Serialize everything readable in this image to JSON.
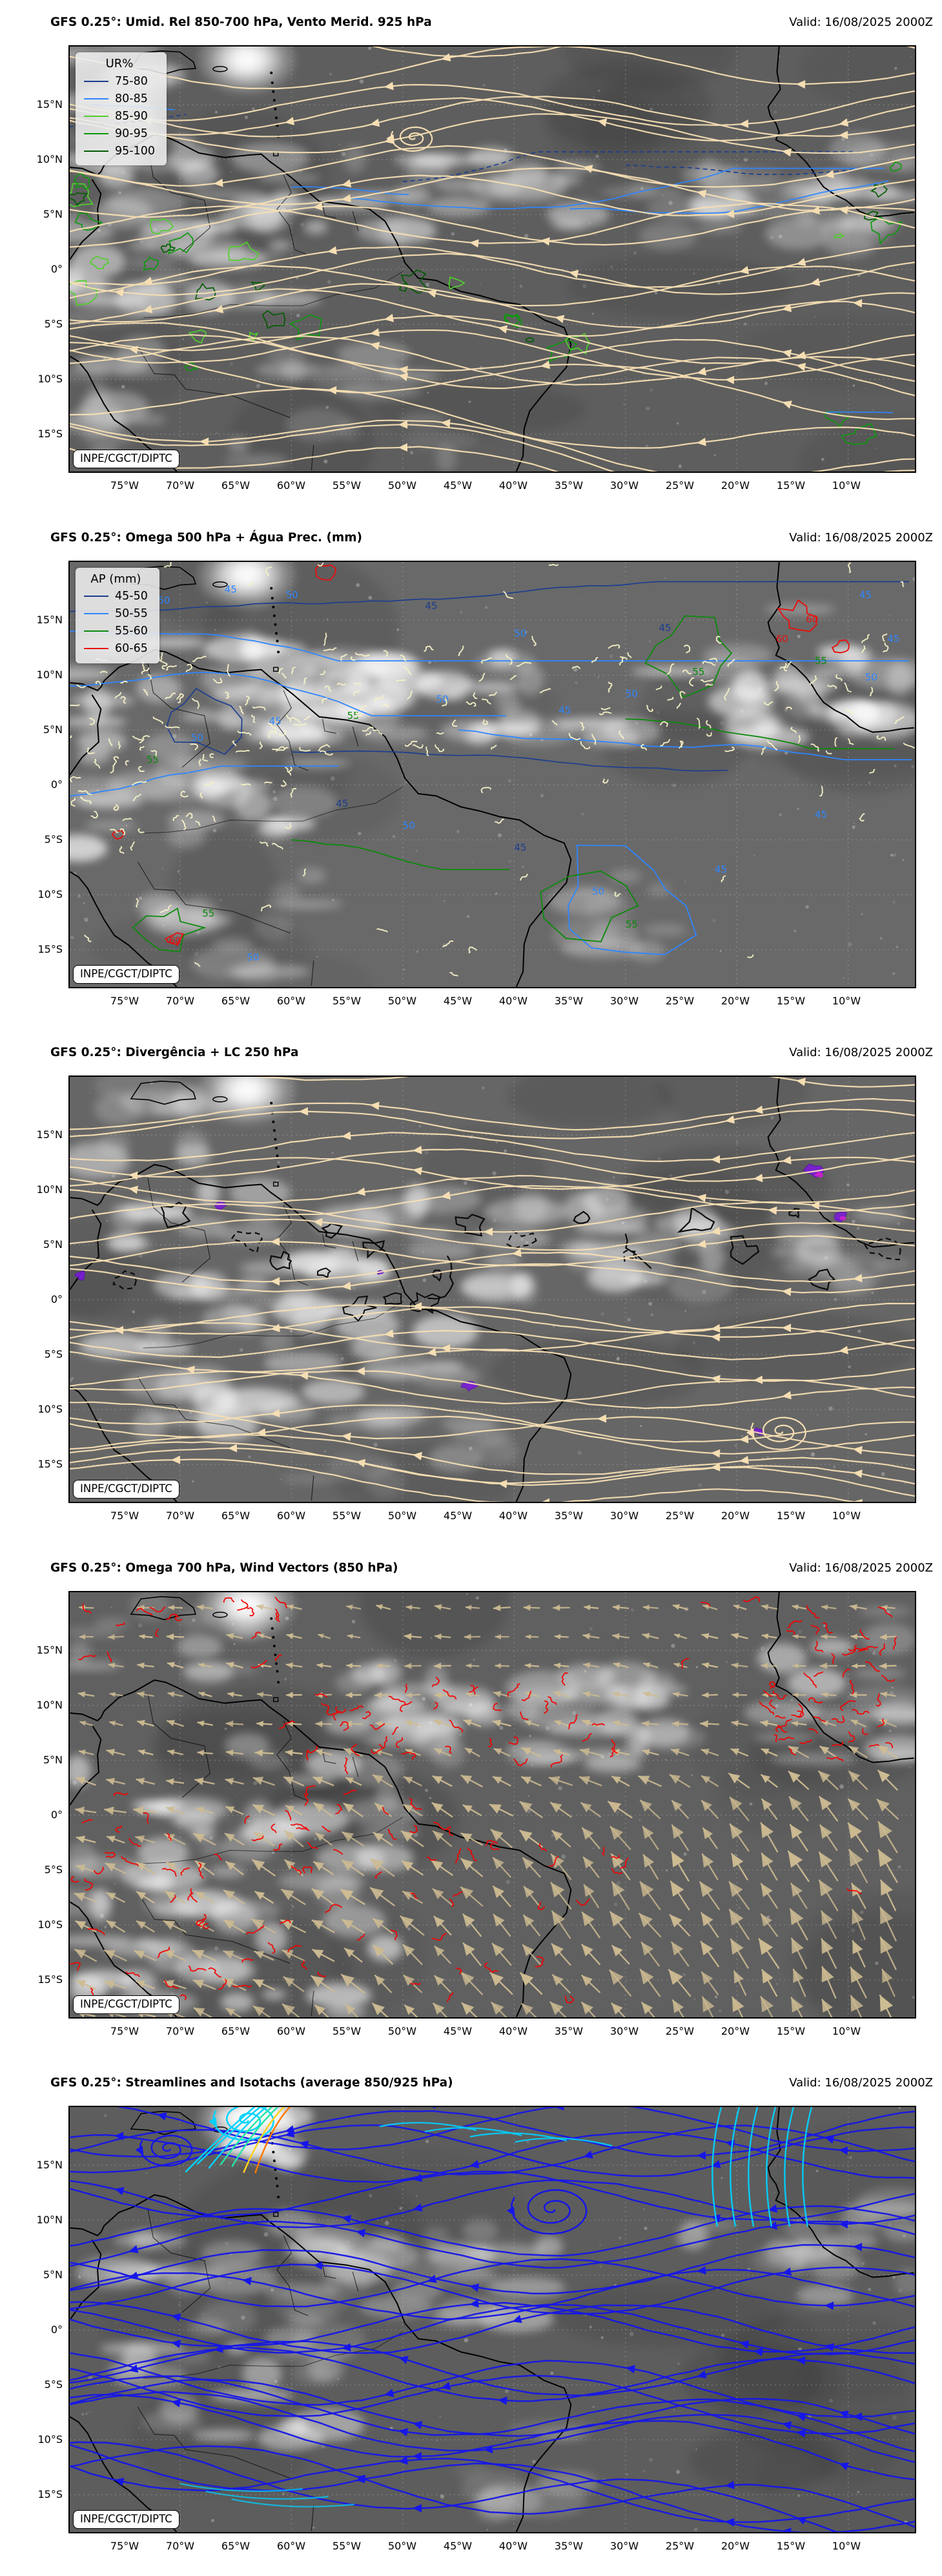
{
  "attribution": "INPE/CGCT/DIPTC",
  "axis": {
    "x_ticks": [
      "75°W",
      "70°W",
      "65°W",
      "60°W",
      "55°W",
      "50°W",
      "45°W",
      "40°W",
      "35°W",
      "30°W",
      "25°W",
      "20°W",
      "15°W",
      "10°W"
    ],
    "y_ticks": [
      "15°N",
      "10°N",
      "5°N",
      "0°",
      "5°S",
      "10°S",
      "15°S"
    ]
  },
  "panels": [
    {
      "title": "GFS 0.25°: Umid. Rel 850-700 hPa, Vento Merid. 925 hPa",
      "valid": "Valid: 16/08/2025 2000Z",
      "legend": {
        "title": "UR%",
        "items": [
          {
            "label": "75-80",
            "color": "#1c3d8f"
          },
          {
            "label": "80-85",
            "color": "#2e86ff"
          },
          {
            "label": "85-90",
            "color": "#4fd02c"
          },
          {
            "label": "90-95",
            "color": "#0c9a0c"
          },
          {
            "label": "95-100",
            "color": "#045c04"
          }
        ]
      }
    },
    {
      "title": "GFS 0.25°: Omega 500 hPa + Água Prec. (mm)",
      "valid": "Valid: 16/08/2025 2000Z",
      "legend": {
        "title": "AP (mm)",
        "items": [
          {
            "label": "45-50",
            "color": "#1c3d8f"
          },
          {
            "label": "50-55",
            "color": "#2e86ff"
          },
          {
            "label": "55-60",
            "color": "#0b8a0b"
          },
          {
            "label": "60-65",
            "color": "#e81010"
          }
        ]
      },
      "contour_labels": [
        "45",
        "50",
        "55",
        "60"
      ]
    },
    {
      "title": "GFS 0.25°: Divergência + LC 250 hPa",
      "valid": "Valid: 16/08/2025 2000Z",
      "legend": null
    },
    {
      "title": "GFS 0.25°: Omega 700 hPa, Wind Vectors (850 hPa)",
      "valid": "Valid: 16/08/2025 2000Z",
      "legend": null
    },
    {
      "title": "GFS 0.25°: Streamlines and Isotachs (average 850/925 hPa)",
      "valid": "Valid: 16/08/2025 2000Z",
      "legend": null
    }
  ],
  "chart_data": [
    {
      "type": "map",
      "title": "GFS 0.25°: Umid. Rel 850-700 hPa, Vento Merid. 925 hPa",
      "valid": "Valid: 16/08/2025 2000Z",
      "lon_ticks": [
        "75°W",
        "70°W",
        "65°W",
        "60°W",
        "55°W",
        "50°W",
        "45°W",
        "40°W",
        "35°W",
        "30°W",
        "25°W",
        "20°W",
        "15°W",
        "10°W"
      ],
      "lat_ticks": [
        "15°N",
        "10°N",
        "5°N",
        "0°",
        "5°S",
        "10°S",
        "15°S"
      ],
      "legend_title": "UR%",
      "levels": [
        "75-80",
        "80-85",
        "85-90",
        "90-95",
        "95-100"
      ],
      "level_colors": [
        "#1c3d8f",
        "#2e86ff",
        "#4fd02c",
        "#0c9a0c",
        "#045c04"
      ],
      "overlays": [
        "relative-humidity contours 850-700 hPa",
        "wheat streamlines of 925 hPa meridional wind",
        "grayscale satellite background"
      ],
      "attribution": "INPE/CGCT/DIPTC"
    },
    {
      "type": "map",
      "title": "GFS 0.25°: Omega 500 hPa + Água Prec. (mm)",
      "valid": "Valid: 16/08/2025 2000Z",
      "lon_ticks": [
        "75°W",
        "70°W",
        "65°W",
        "60°W",
        "55°W",
        "50°W",
        "45°W",
        "40°W",
        "35°W",
        "30°W",
        "25°W",
        "20°W",
        "15°W",
        "10°W"
      ],
      "lat_ticks": [
        "15°N",
        "10°N",
        "5°N",
        "0°",
        "5°S",
        "10°S",
        "15°S"
      ],
      "legend_title": "AP (mm)",
      "levels": [
        "45-50",
        "50-55",
        "55-60",
        "60-65"
      ],
      "level_colors": [
        "#1c3d8f",
        "#2e86ff",
        "#0b8a0b",
        "#e81010"
      ],
      "contour_inline_labels": [
        "45",
        "50",
        "55",
        "60"
      ],
      "overlays": [
        "precipitable water contours with inline labels",
        "pale yellow omega 500 hPa tick marks",
        "grayscale satellite background"
      ],
      "attribution": "INPE/CGCT/DIPTC"
    },
    {
      "type": "map",
      "title": "GFS 0.25°: Divergência + LC 250 hPa",
      "valid": "Valid: 16/08/2025 2000Z",
      "lon_ticks": [
        "75°W",
        "70°W",
        "65°W",
        "60°W",
        "55°W",
        "50°W",
        "45°W",
        "40°W",
        "35°W",
        "30°W",
        "25°W",
        "20°W",
        "15°W",
        "10°W"
      ],
      "lat_ticks": [
        "15°N",
        "10°N",
        "5°N",
        "0°",
        "5°S",
        "10°S",
        "15°S"
      ],
      "overlays": [
        "wheat streamlines 250 hPa",
        "black LC contours",
        "purple/magenta divergence patches",
        "grayscale satellite background"
      ],
      "attribution": "INPE/CGCT/DIPTC"
    },
    {
      "type": "map",
      "title": "GFS 0.25°: Omega 700 hPa, Wind Vectors (850 hPa)",
      "valid": "Valid: 16/08/2025 2000Z",
      "lon_ticks": [
        "75°W",
        "70°W",
        "65°W",
        "60°W",
        "55°W",
        "50°W",
        "45°W",
        "40°W",
        "35°W",
        "30°W",
        "25°W",
        "20°W",
        "15°W",
        "10°W"
      ],
      "lat_ticks": [
        "15°N",
        "10°N",
        "5°N",
        "0°",
        "5°S",
        "10°S",
        "15°S"
      ],
      "overlays": [
        "tan 850 hPa wind vector arrows",
        "red omega 700 hPa contour squiggles",
        "grayscale satellite background"
      ],
      "attribution": "INPE/CGCT/DIPTC"
    },
    {
      "type": "map",
      "title": "GFS 0.25°: Streamlines and Isotachs (average 850/925 hPa)",
      "valid": "Valid: 16/08/2025 2000Z",
      "lon_ticks": [
        "75°W",
        "70°W",
        "65°W",
        "60°W",
        "55°W",
        "50°W",
        "45°W",
        "40°W",
        "35°W",
        "30°W",
        "25°W",
        "20°W",
        "15°W",
        "10°W"
      ],
      "lat_ticks": [
        "15°N",
        "10°N",
        "5°N",
        "0°",
        "5°S",
        "10°S",
        "15°S"
      ],
      "overlays": [
        "blue streamlines colored by isotach speed (blue→cyan→green→yellow→orange)",
        "tropical cyclone vortex near 18N 64W",
        "grayscale satellite background"
      ],
      "attribution": "INPE/CGCT/DIPTC"
    }
  ]
}
